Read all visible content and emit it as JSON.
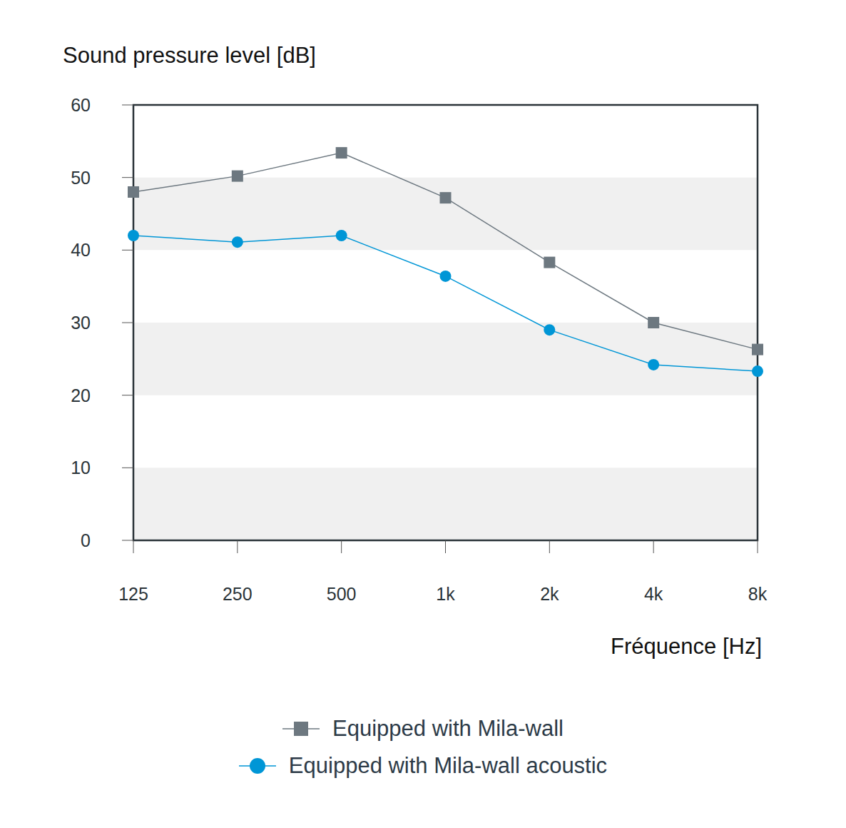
{
  "chart_data": {
    "type": "line",
    "title": "Sound pressure level [dB]",
    "x_label": "Fréquence [Hz]",
    "categories": [
      "125",
      "250",
      "500",
      "1k",
      "2k",
      "4k",
      "8k"
    ],
    "series": [
      {
        "name": "Equipped with Mila-wall",
        "color": "#6d7880",
        "marker": "square",
        "values": [
          48,
          50.2,
          53.4,
          47.2,
          38.3,
          30,
          26.3
        ]
      },
      {
        "name": "Equipped with Mila-wall acoustic",
        "color": "#0096d6",
        "marker": "circle",
        "values": [
          42,
          41.1,
          42,
          36.4,
          29,
          24.2,
          23.3
        ]
      }
    ],
    "ylim": [
      0,
      60
    ],
    "yticks": [
      0,
      10,
      20,
      30,
      40,
      50,
      60
    ],
    "grid": true,
    "legend": "bottom"
  }
}
